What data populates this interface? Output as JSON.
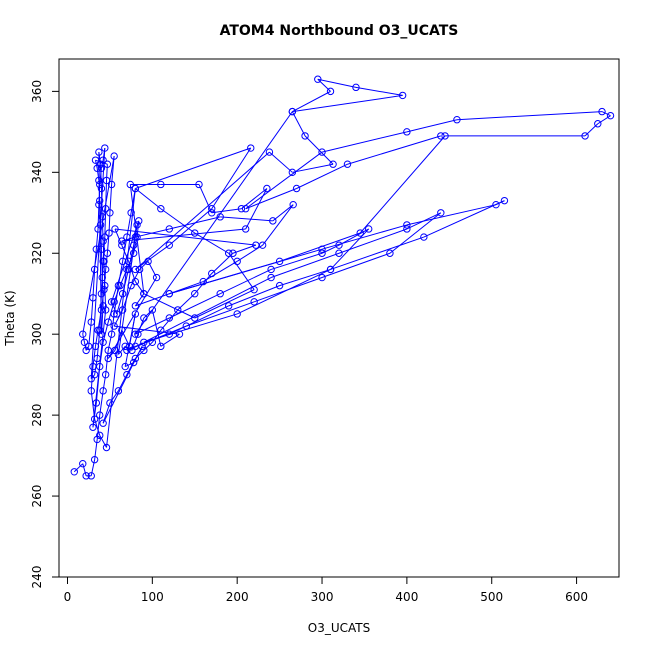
{
  "chart_data": {
    "type": "line",
    "title": "ATOM4 Northbound O3_UCATS",
    "xlabel": "O3_UCATS",
    "ylabel": "Theta (K)",
    "xlim": [
      -10,
      650
    ],
    "ylim": [
      240,
      368
    ],
    "xticks": [
      0,
      100,
      200,
      300,
      400,
      500,
      600
    ],
    "yticks": [
      240,
      260,
      280,
      300,
      320,
      340,
      360
    ],
    "grid": false,
    "legend": "none",
    "marker": "open-circle",
    "color": "#0000ff",
    "points": [
      [
        8,
        266
      ],
      [
        18,
        268
      ],
      [
        22,
        265
      ],
      [
        28,
        265
      ],
      [
        32,
        269
      ],
      [
        35,
        274
      ],
      [
        38,
        280
      ],
      [
        42,
        286
      ],
      [
        45,
        290
      ],
      [
        48,
        296
      ],
      [
        52,
        300
      ],
      [
        55,
        305
      ],
      [
        60,
        312
      ],
      [
        65,
        318
      ],
      [
        70,
        324
      ],
      [
        75,
        330
      ],
      [
        80,
        336
      ],
      [
        46,
        272
      ],
      [
        38,
        275
      ],
      [
        32,
        279
      ],
      [
        28,
        286
      ],
      [
        30,
        292
      ],
      [
        33,
        297
      ],
      [
        36,
        301
      ],
      [
        40,
        306
      ],
      [
        43,
        311
      ],
      [
        45,
        316
      ],
      [
        47,
        320
      ],
      [
        49,
        325
      ],
      [
        50,
        330
      ],
      [
        52,
        337
      ],
      [
        55,
        344
      ],
      [
        18,
        300
      ],
      [
        20,
        298
      ],
      [
        22,
        296
      ],
      [
        25,
        297
      ],
      [
        28,
        303
      ],
      [
        30,
        309
      ],
      [
        32,
        316
      ],
      [
        34,
        321
      ],
      [
        36,
        326
      ],
      [
        37,
        332
      ],
      [
        38,
        337
      ],
      [
        40,
        341
      ],
      [
        42,
        343
      ],
      [
        44,
        346
      ],
      [
        28,
        289
      ],
      [
        32,
        290
      ],
      [
        35,
        294
      ],
      [
        38,
        301
      ],
      [
        40,
        310
      ],
      [
        42,
        318
      ],
      [
        44,
        324
      ],
      [
        45,
        331
      ],
      [
        46,
        338
      ],
      [
        47,
        342
      ],
      [
        33,
        343
      ],
      [
        35,
        341
      ],
      [
        37,
        338
      ],
      [
        38,
        333
      ],
      [
        39,
        327
      ],
      [
        40,
        321
      ],
      [
        41,
        314
      ],
      [
        42,
        307
      ],
      [
        40,
        300
      ],
      [
        37,
        345
      ],
      [
        39,
        342
      ],
      [
        40,
        336
      ],
      [
        41,
        329
      ],
      [
        42,
        323
      ],
      [
        43,
        318
      ],
      [
        44,
        312
      ],
      [
        45,
        306
      ],
      [
        30,
        277
      ],
      [
        34,
        283
      ],
      [
        38,
        292
      ],
      [
        42,
        298
      ],
      [
        48,
        303
      ],
      [
        55,
        308
      ],
      [
        62,
        312
      ],
      [
        70,
        316
      ],
      [
        78,
        320
      ],
      [
        82,
        324
      ],
      [
        84,
        328
      ],
      [
        52,
        308
      ],
      [
        58,
        305
      ],
      [
        65,
        310
      ],
      [
        72,
        316
      ],
      [
        78,
        322
      ],
      [
        82,
        327
      ],
      [
        60,
        295
      ],
      [
        68,
        297
      ],
      [
        76,
        296
      ],
      [
        83,
        300
      ],
      [
        90,
        304
      ],
      [
        100,
        306
      ],
      [
        110,
        297
      ],
      [
        132,
        300
      ],
      [
        55,
        302
      ],
      [
        65,
        306
      ],
      [
        75,
        312
      ],
      [
        85,
        316
      ],
      [
        95,
        318
      ],
      [
        105,
        314
      ],
      [
        48,
        294
      ],
      [
        56,
        296
      ],
      [
        64,
        301
      ],
      [
        73,
        297
      ],
      [
        80,
        305
      ],
      [
        68,
        292
      ],
      [
        78,
        293
      ],
      [
        88,
        297
      ],
      [
        42,
        278
      ],
      [
        50,
        283
      ],
      [
        60,
        286
      ],
      [
        70,
        290
      ],
      [
        80,
        294
      ],
      [
        90,
        296
      ],
      [
        100,
        298
      ],
      [
        110,
        301
      ],
      [
        130,
        306
      ],
      [
        150,
        310
      ],
      [
        170,
        315
      ],
      [
        195,
        320
      ],
      [
        222,
        322
      ],
      [
        56,
        326
      ],
      [
        64,
        322
      ],
      [
        72,
        318
      ],
      [
        80,
        313
      ],
      [
        90,
        310
      ],
      [
        74,
        337
      ],
      [
        110,
        337
      ],
      [
        155,
        337
      ],
      [
        170,
        330
      ],
      [
        205,
        331
      ],
      [
        235,
        336
      ],
      [
        210,
        326
      ],
      [
        64,
        323
      ],
      [
        80,
        324
      ],
      [
        120,
        326
      ],
      [
        180,
        329
      ],
      [
        242,
        328
      ],
      [
        266,
        332
      ],
      [
        230,
        322
      ],
      [
        200,
        318
      ],
      [
        160,
        313
      ],
      [
        120,
        310
      ],
      [
        80,
        307
      ],
      [
        90,
        310
      ],
      [
        150,
        304
      ],
      [
        220,
        311
      ],
      [
        190,
        320
      ],
      [
        150,
        325
      ],
      [
        110,
        331
      ],
      [
        80,
        336
      ],
      [
        216,
        346
      ],
      [
        170,
        331
      ],
      [
        120,
        322
      ],
      [
        80,
        316
      ],
      [
        238,
        345
      ],
      [
        265,
        340
      ],
      [
        313,
        342
      ],
      [
        280,
        349
      ],
      [
        265,
        355
      ],
      [
        310,
        360
      ],
      [
        295,
        363
      ],
      [
        340,
        361
      ],
      [
        395,
        359
      ],
      [
        265,
        355
      ],
      [
        80,
        300
      ],
      [
        120,
        304
      ],
      [
        180,
        310
      ],
      [
        240,
        316
      ],
      [
        300,
        320
      ],
      [
        320,
        322
      ],
      [
        355,
        326
      ],
      [
        310,
        316
      ],
      [
        250,
        312
      ],
      [
        190,
        307
      ],
      [
        120,
        300
      ],
      [
        80,
        297
      ],
      [
        70,
        296
      ],
      [
        140,
        302
      ],
      [
        220,
        308
      ],
      [
        300,
        314
      ],
      [
        380,
        320
      ],
      [
        440,
        330
      ],
      [
        400,
        326
      ],
      [
        320,
        320
      ],
      [
        240,
        314
      ],
      [
        90,
        298
      ],
      [
        200,
        305
      ],
      [
        310,
        316
      ],
      [
        420,
        324
      ],
      [
        515,
        333
      ],
      [
        505,
        332
      ],
      [
        400,
        327
      ],
      [
        300,
        321
      ],
      [
        120,
        310
      ],
      [
        250,
        318
      ],
      [
        345,
        325
      ],
      [
        445,
        349
      ],
      [
        610,
        349
      ],
      [
        625,
        352
      ],
      [
        640,
        354
      ],
      [
        630,
        355
      ],
      [
        459,
        353
      ],
      [
        400,
        350
      ],
      [
        300,
        345
      ],
      [
        210,
        331
      ],
      [
        270,
        336
      ],
      [
        330,
        342
      ],
      [
        440,
        349
      ]
    ]
  }
}
